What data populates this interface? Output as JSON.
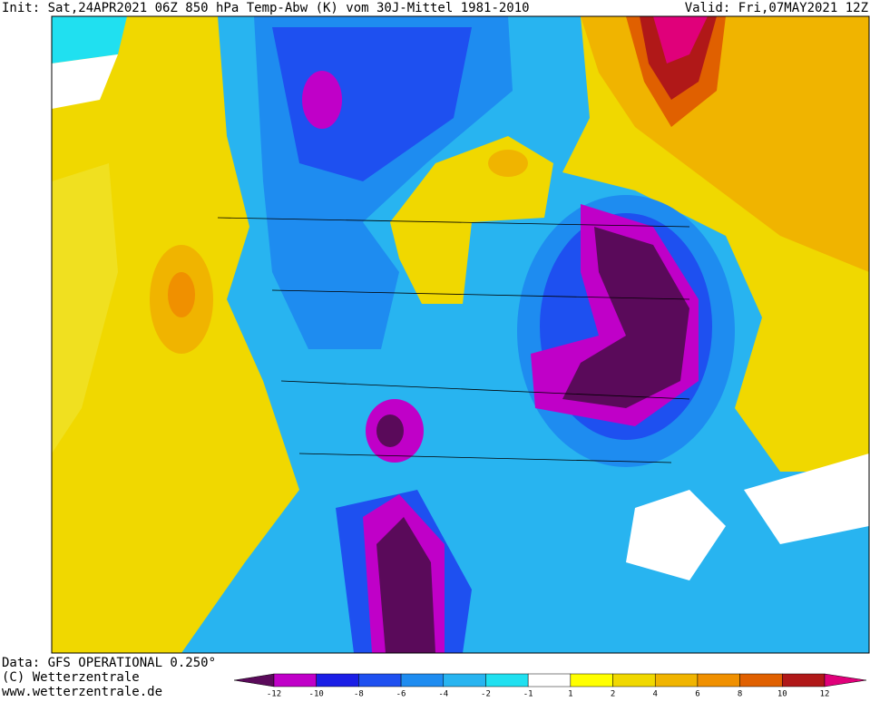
{
  "header": {
    "left": "Init: Sat,24APR2021 06Z 850 hPa Temp-Abw (K) vom 30J-Mittel 1981-2010",
    "right": "Valid: Fri,07MAY2021 12Z"
  },
  "footer": {
    "lines": [
      "Data: GFS OPERATIONAL 0.250°",
      "(C) Wetterzentrale",
      "www.wetterzentrale.de"
    ]
  },
  "legend": {
    "ticks": [
      -12,
      -10,
      -8,
      -6,
      -4,
      -2,
      -1,
      1,
      2,
      4,
      6,
      8,
      10,
      12
    ],
    "colors": [
      "#5a0a5a",
      "#c000c8",
      "#1a1ee6",
      "#1e50f0",
      "#1e8cf0",
      "#28b4f0",
      "#20e0f0",
      "#ffffff",
      "#ffff00",
      "#f0d800",
      "#f0b400",
      "#f09000",
      "#e06000",
      "#b01818",
      "#e0007a"
    ]
  }
}
